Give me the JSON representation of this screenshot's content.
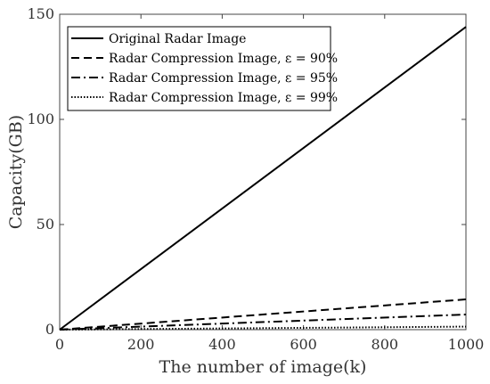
{
  "chart_data": {
    "type": "line",
    "title": "",
    "xlabel": "The number of image(k)",
    "ylabel": "Capacity(GB)",
    "xlim": [
      0,
      1000
    ],
    "ylim": [
      0,
      150
    ],
    "x_ticks": [
      "0",
      "200",
      "400",
      "600",
      "800",
      "1000"
    ],
    "y_ticks": [
      "0",
      "50",
      "100",
      "150"
    ],
    "grid": false,
    "legend_position": "top-left",
    "series": [
      {
        "name": "Original Radar Image",
        "style": "solid",
        "x": [
          0,
          1000
        ],
        "y": [
          0,
          144
        ]
      },
      {
        "name": "Radar Compression Image, ε = 90%",
        "style": "dashed",
        "x": [
          0,
          1000
        ],
        "y": [
          0,
          14.4
        ]
      },
      {
        "name": "Radar Compression Image, ε = 95%",
        "style": "dashdot",
        "x": [
          0,
          1000
        ],
        "y": [
          0,
          7.2
        ]
      },
      {
        "name": "Radar Compression Image, ε = 99%",
        "style": "dotted",
        "x": [
          0,
          1000
        ],
        "y": [
          0,
          1.44
        ]
      }
    ]
  },
  "colors": {
    "line": "#000000",
    "axis": "#444444",
    "text": "#333333"
  }
}
